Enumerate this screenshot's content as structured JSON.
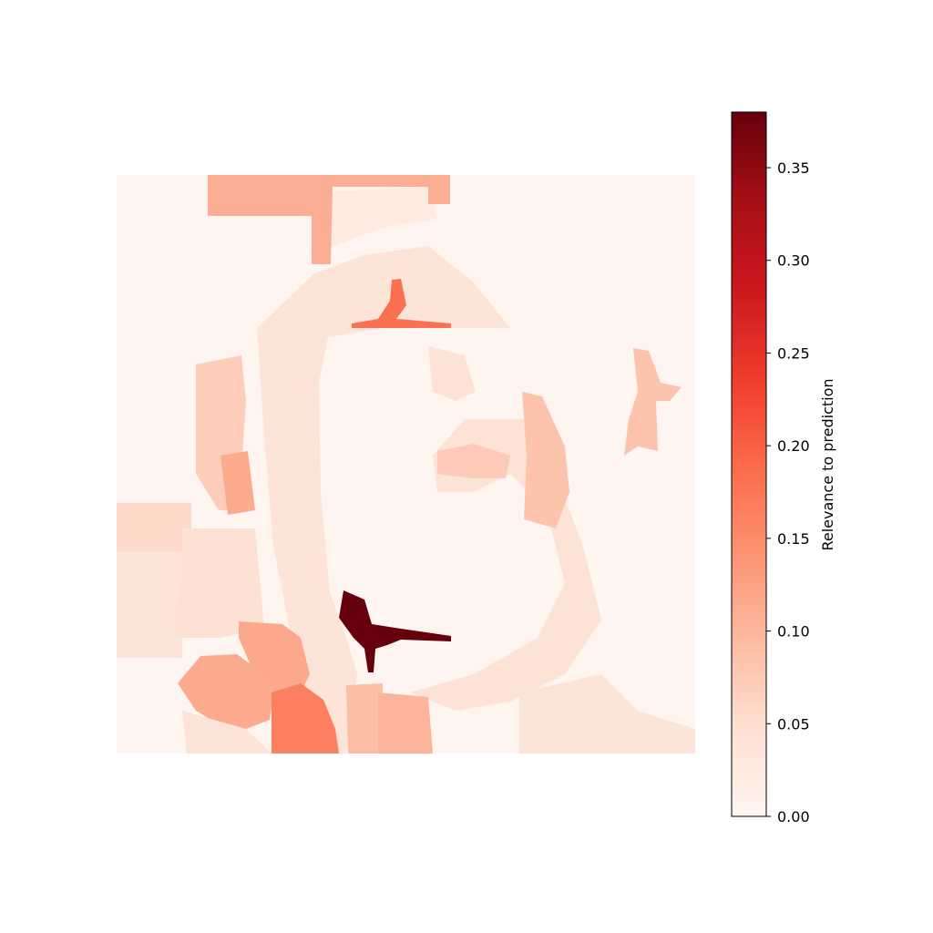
{
  "chart_data": {
    "type": "heatmap",
    "title": "",
    "xlabel": "",
    "ylabel": "",
    "axes_visible": false,
    "colormap": "Reds",
    "colormap_stops": [
      "#fff5f0",
      "#fee0d2",
      "#fcbba1",
      "#fc9272",
      "#fb6a4a",
      "#ef3b2c",
      "#cb181d",
      "#a50f15",
      "#67000d"
    ],
    "colorbar": {
      "label": "Relevance to prediction",
      "range": [
        0.0,
        0.38
      ],
      "ticks": [
        0.0,
        0.05,
        0.1,
        0.15,
        0.2,
        0.25,
        0.3,
        0.35
      ],
      "tick_labels": [
        "0.00",
        "0.05",
        "0.10",
        "0.15",
        "0.20",
        "0.25",
        "0.30",
        "0.35"
      ],
      "placement": "right"
    },
    "value_range": [
      0.0,
      0.38
    ]
  }
}
